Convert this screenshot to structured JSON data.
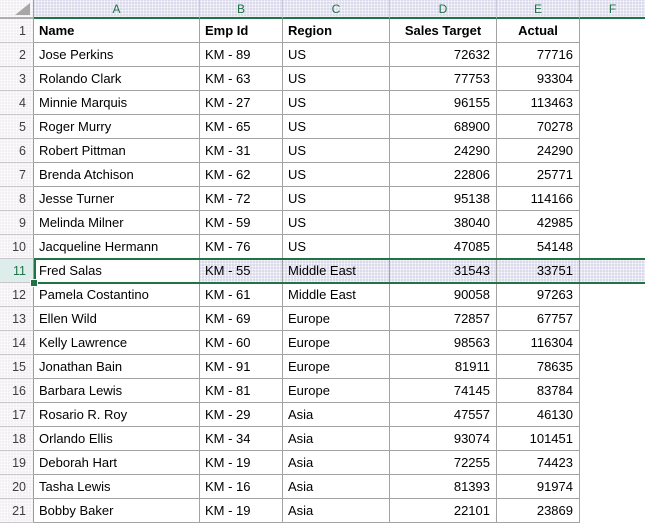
{
  "sheet": {
    "column_letters": [
      "A",
      "B",
      "C",
      "D",
      "E",
      "F"
    ],
    "header_row": {
      "number": "1",
      "name": "Name",
      "emp_id": "Emp Id",
      "region": "Region",
      "sales_target": "Sales Target",
      "actual": "Actual"
    },
    "rows": [
      {
        "number": 2,
        "name": "Jose Perkins",
        "emp_id": "KM - 89",
        "region": "US",
        "sales_target": 72632,
        "actual": 77716
      },
      {
        "number": 3,
        "name": "Rolando Clark",
        "emp_id": "KM - 63",
        "region": "US",
        "sales_target": 77753,
        "actual": 93304
      },
      {
        "number": 4,
        "name": "Minnie Marquis",
        "emp_id": "KM - 27",
        "region": "US",
        "sales_target": 96155,
        "actual": 113463
      },
      {
        "number": 5,
        "name": "Roger Murry",
        "emp_id": "KM - 65",
        "region": "US",
        "sales_target": 68900,
        "actual": 70278
      },
      {
        "number": 6,
        "name": "Robert Pittman",
        "emp_id": "KM - 31",
        "region": "US",
        "sales_target": 24290,
        "actual": 24290
      },
      {
        "number": 7,
        "name": "Brenda Atchison",
        "emp_id": "KM - 62",
        "region": "US",
        "sales_target": 22806,
        "actual": 25771
      },
      {
        "number": 8,
        "name": "Jesse Turner",
        "emp_id": "KM - 72",
        "region": "US",
        "sales_target": 95138,
        "actual": 114166
      },
      {
        "number": 9,
        "name": "Melinda Milner",
        "emp_id": "KM - 59",
        "region": "US",
        "sales_target": 38040,
        "actual": 42985
      },
      {
        "number": 10,
        "name": "Jacqueline Hermann",
        "emp_id": "KM - 76",
        "region": "US",
        "sales_target": 47085,
        "actual": 54148
      },
      {
        "number": 11,
        "name": "Fred Salas",
        "emp_id": "KM - 55",
        "region": "Middle East",
        "sales_target": 31543,
        "actual": 33751,
        "selected": true
      },
      {
        "number": 12,
        "name": "Pamela Costantino",
        "emp_id": "KM - 61",
        "region": "Middle East",
        "sales_target": 90058,
        "actual": 97263
      },
      {
        "number": 13,
        "name": "Ellen Wild",
        "emp_id": "KM - 69",
        "region": "Europe",
        "sales_target": 72857,
        "actual": 67757
      },
      {
        "number": 14,
        "name": "Kelly Lawrence",
        "emp_id": "KM - 60",
        "region": "Europe",
        "sales_target": 98563,
        "actual": 116304
      },
      {
        "number": 15,
        "name": "Jonathan Bain",
        "emp_id": "KM - 91",
        "region": "Europe",
        "sales_target": 81911,
        "actual": 78635
      },
      {
        "number": 16,
        "name": "Barbara Lewis",
        "emp_id": "KM - 81",
        "region": "Europe",
        "sales_target": 74145,
        "actual": 83784
      },
      {
        "number": 17,
        "name": "Rosario R. Roy",
        "emp_id": "KM - 29",
        "region": "Asia",
        "sales_target": 47557,
        "actual": 46130
      },
      {
        "number": 18,
        "name": "Orlando Ellis",
        "emp_id": "KM - 34",
        "region": "Asia",
        "sales_target": 93074,
        "actual": 101451
      },
      {
        "number": 19,
        "name": "Deborah Hart",
        "emp_id": "KM - 19",
        "region": "Asia",
        "sales_target": 72255,
        "actual": 74423
      },
      {
        "number": 20,
        "name": "Tasha Lewis",
        "emp_id": "KM - 16",
        "region": "Asia",
        "sales_target": 81393,
        "actual": 91974
      },
      {
        "number": 21,
        "name": "Bobby Baker",
        "emp_id": "KM - 19",
        "region": "Asia",
        "sales_target": 22101,
        "actual": 23869
      }
    ],
    "selection": {
      "selected_row": 11,
      "active_cell": "A11",
      "active_cell_value": "Fred Salas"
    },
    "colors": {
      "accent_green": "#217346",
      "header_fill": "#DBDAED",
      "row_header_fill": "#F1EFF2",
      "selected_row_header_fill": "#DCEDEC",
      "selection_fill": "#DBDAEB"
    }
  }
}
